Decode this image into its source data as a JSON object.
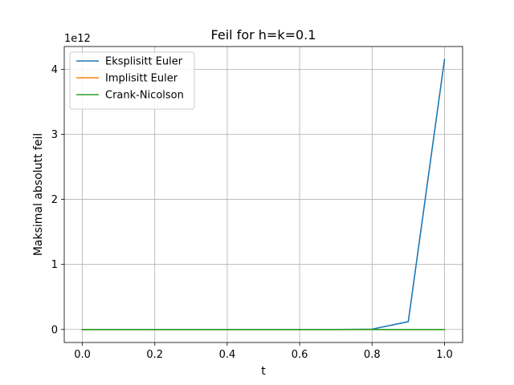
{
  "chart_data": {
    "type": "line",
    "title": "Feil for h=k=0.1",
    "xlabel": "t",
    "ylabel": "Maksimal absolutt feil",
    "y_scale_label": "1e12",
    "xlim": [
      -0.05,
      1.05
    ],
    "ylim": [
      -0.2,
      4.35
    ],
    "x_ticks": [
      0.0,
      0.2,
      0.4,
      0.6,
      0.8,
      1.0
    ],
    "x_tick_labels": [
      "0.0",
      "0.2",
      "0.4",
      "0.6",
      "0.8",
      "1.0"
    ],
    "y_ticks": [
      0,
      1,
      2,
      3,
      4
    ],
    "y_tick_labels": [
      "0",
      "1",
      "2",
      "3",
      "4"
    ],
    "grid": true,
    "legend_position": "top-left",
    "x": [
      0.0,
      0.1,
      0.2,
      0.3,
      0.4,
      0.5,
      0.6,
      0.7,
      0.8,
      0.9,
      1.0
    ],
    "series": [
      {
        "name": "Eksplisitt Euler",
        "color": "#1f77b4",
        "values": [
          0,
          0,
          0,
          0,
          0,
          0,
          0,
          0,
          0.005,
          0.12,
          4.15
        ]
      },
      {
        "name": "Implisitt Euler",
        "color": "#ff7f0e",
        "values": [
          0,
          0,
          0,
          0,
          0,
          0,
          0,
          0,
          0,
          0,
          0
        ]
      },
      {
        "name": "Crank-Nicolson",
        "color": "#2ca02c",
        "values": [
          0,
          0,
          0,
          0,
          0,
          0,
          0,
          0,
          0,
          0,
          0
        ]
      }
    ]
  }
}
